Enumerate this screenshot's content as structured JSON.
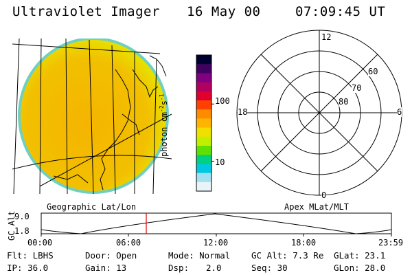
{
  "header": {
    "instrument": "Ultraviolet Imager",
    "date": "16 May 00",
    "time": "07:09:45 UT"
  },
  "colorbar": {
    "unit_label": "photon cm",
    "unit_exp1": "-2",
    "unit_s": "s",
    "unit_exp2": "-1",
    "tick_100": "100",
    "tick_10": "10",
    "colors": [
      "#000030",
      "#400060",
      "#800080",
      "#b00060",
      "#e00030",
      "#ff4000",
      "#ff8c00",
      "#ffb400",
      "#f0e000",
      "#c0f000",
      "#60e000",
      "#00d080",
      "#00c8e0",
      "#a0e0f0",
      "#e8f4f8"
    ]
  },
  "polar_plot": {
    "label_12": "12",
    "label_18": "18",
    "label_6": "6",
    "label_0": "0",
    "lat_60": "60",
    "lat_70": "70",
    "lat_80": "80"
  },
  "map_labels": {
    "left": "Geographic Lat/Lon",
    "right": "Apex MLat/MLT"
  },
  "timeline": {
    "ylabel": "GC Alt",
    "y_top": "9.0",
    "y_bottom": "1.8",
    "ticks": [
      "00:00",
      "06:00",
      "12:00",
      "18:00",
      "23:59"
    ]
  },
  "info": {
    "flt": "Flt: LBHS",
    "ip": "IP: 36.0",
    "door": "Door: Open",
    "gain": "Gain: 13",
    "mode": "Mode: Normal",
    "dsp_label": "Dsp:",
    "dsp_value": "2.0",
    "gcalt": "GC Alt: 7.3 Re",
    "seq": "Seq: 30",
    "glat": "GLat: 23.1",
    "glon": "GLon: 28.0"
  }
}
